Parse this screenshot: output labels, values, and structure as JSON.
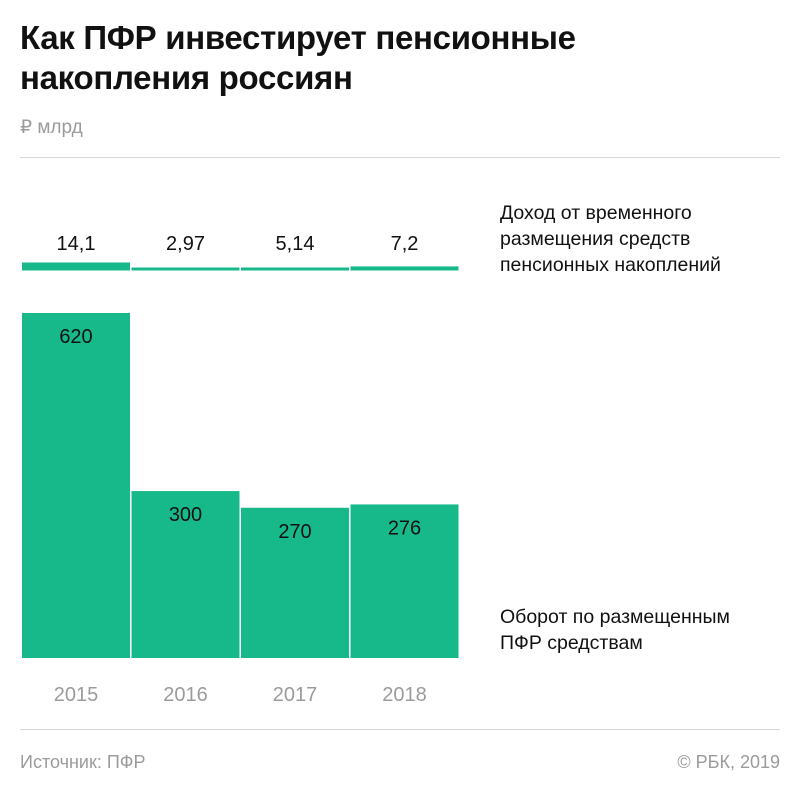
{
  "title": {
    "line1": "Как ПФР инвестирует пенсионные",
    "line2": "накопления россиян"
  },
  "units": "₽ млрд",
  "legend": {
    "income": [
      "Доход от временного",
      "размещения средств",
      "пенсионных накоплений"
    ],
    "turnover": [
      "Оборот по размещенным",
      "ПФР средствам"
    ]
  },
  "footer": {
    "source": "Источник: ПФР",
    "copyright": "© РБК, 2019"
  },
  "colors": {
    "bar": "#17b98a",
    "text": "#111111",
    "muted": "#9b9b9b"
  },
  "chart_data": {
    "type": "bar",
    "title": "Как ПФР инвестирует пенсионные накопления россиян",
    "unit": "₽ млрд",
    "categories": [
      "2015",
      "2016",
      "2017",
      "2018"
    ],
    "series": [
      {
        "name": "Доход от временного размещения средств пенсионных накоплений",
        "values": [
          14.1,
          2.97,
          5.14,
          7.2
        ],
        "labels": [
          "14,1",
          "2,97",
          "5,14",
          "7,2"
        ]
      },
      {
        "name": "Оборот по размещенным ПФР средствам",
        "values": [
          620,
          300,
          270,
          276
        ],
        "labels": [
          "620",
          "300",
          "270",
          "276"
        ]
      }
    ]
  }
}
